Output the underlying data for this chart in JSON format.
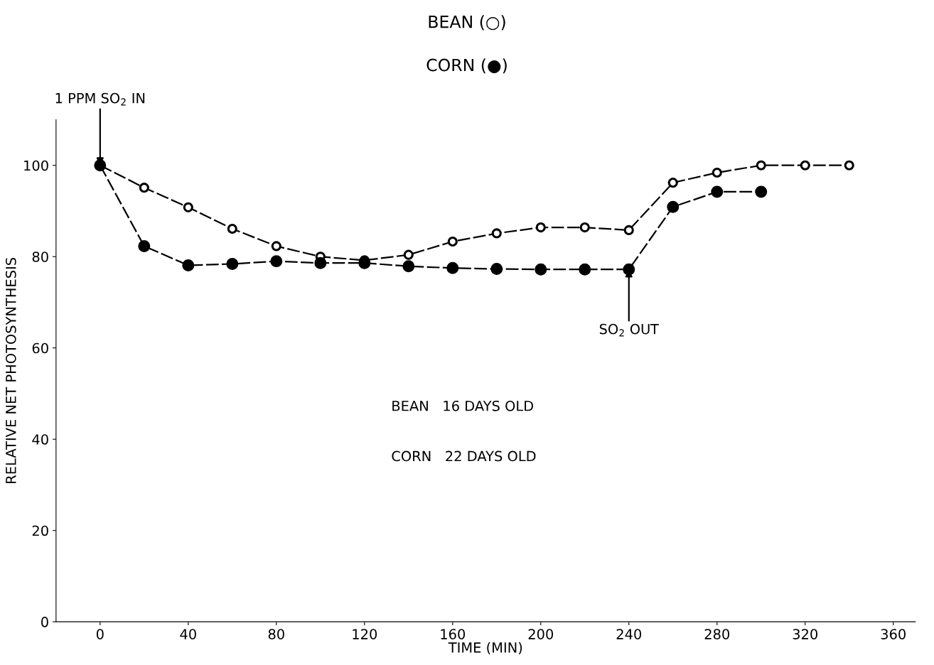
{
  "chart_data": {
    "type": "line",
    "title": "BEAN (○)",
    "subtitle": "CORN (●)",
    "xlabel": "TIME (MIN)",
    "ylabel": "RELATIVE NET PHOTOSYNTHESIS",
    "x": [
      0,
      20,
      40,
      60,
      80,
      100,
      120,
      140,
      160,
      180,
      200,
      220,
      240,
      260,
      280,
      300,
      320,
      340
    ],
    "series": [
      {
        "color": "#000000",
        "values": [
          100,
          95.1,
          90.8,
          86.1,
          82.3,
          80,
          79.2,
          80.4,
          83.3,
          85.1,
          86.4,
          86.4,
          85.8,
          96.2,
          98.4,
          100,
          100,
          100
        ]
      },
      {
        "color": "#000000",
        "values": [
          100,
          82.3,
          78.1,
          78.4,
          79,
          78.6,
          78.6,
          77.9,
          77.5,
          77.3,
          77.2,
          77.2,
          77.2,
          90.9,
          94.2,
          94.2,
          null,
          null
        ]
      }
    ],
    "annotations": [
      {
        "text": "1 PPM SO$_{2}$ IN",
        "x": 0,
        "y": 100
      },
      {
        "text": "SO$_{2}$ OUT",
        "x": 240,
        "y": 77.2
      },
      "BEAN   16 DAYS OLD",
      "CORN   22 DAYS OLD"
    ],
    "xlim": [
      -20,
      370
    ],
    "xticks": [
      0,
      40,
      80,
      120,
      160,
      200,
      240,
      280,
      320,
      360
    ],
    "ylim": [
      0,
      110
    ],
    "yticks": [
      0,
      20,
      40,
      60,
      80,
      100
    ],
    "marker": "circle",
    "line_style": "dashed",
    "grid": false,
    "legend": false
  }
}
